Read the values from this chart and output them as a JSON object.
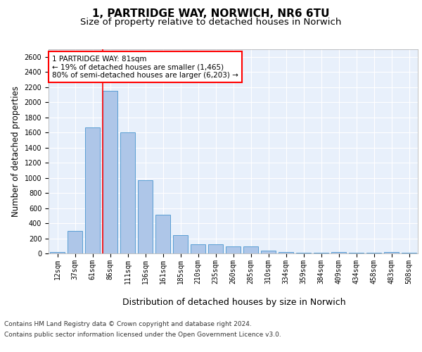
{
  "title1": "1, PARTRIDGE WAY, NORWICH, NR6 6TU",
  "title2": "Size of property relative to detached houses in Norwich",
  "xlabel": "Distribution of detached houses by size in Norwich",
  "ylabel": "Number of detached properties",
  "categories": [
    "12sqm",
    "37sqm",
    "61sqm",
    "86sqm",
    "111sqm",
    "136sqm",
    "161sqm",
    "185sqm",
    "210sqm",
    "235sqm",
    "260sqm",
    "285sqm",
    "310sqm",
    "334sqm",
    "359sqm",
    "384sqm",
    "409sqm",
    "434sqm",
    "458sqm",
    "483sqm",
    "508sqm"
  ],
  "values": [
    20,
    300,
    1670,
    2150,
    1600,
    970,
    510,
    245,
    120,
    120,
    95,
    95,
    40,
    15,
    10,
    5,
    20,
    5,
    5,
    20,
    5
  ],
  "bar_color": "#aec6e8",
  "bar_edge_color": "#5a9fd4",
  "property_line_color": "red",
  "annotation_text": "1 PARTRIDGE WAY: 81sqm\n← 19% of detached houses are smaller (1,465)\n80% of semi-detached houses are larger (6,203) →",
  "annotation_box_color": "white",
  "annotation_box_edge": "red",
  "ylim": [
    0,
    2700
  ],
  "yticks": [
    0,
    200,
    400,
    600,
    800,
    1000,
    1200,
    1400,
    1600,
    1800,
    2000,
    2200,
    2400,
    2600
  ],
  "footer1": "Contains HM Land Registry data © Crown copyright and database right 2024.",
  "footer2": "Contains public sector information licensed under the Open Government Licence v3.0.",
  "background_color": "#e8f0fb",
  "fig_background": "#ffffff",
  "title1_fontsize": 11,
  "title2_fontsize": 9.5,
  "xlabel_fontsize": 9,
  "ylabel_fontsize": 8.5,
  "tick_fontsize": 7,
  "footer_fontsize": 6.5,
  "annotation_fontsize": 7.5
}
